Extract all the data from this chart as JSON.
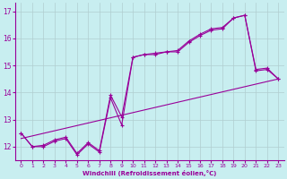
{
  "xlabel": "Windchill (Refroidissement éolien,°C)",
  "bg_color": "#c8eef0",
  "line_color": "#990099",
  "grid_color": "#b0cdd0",
  "xlim": [
    -0.5,
    23.5
  ],
  "ylim": [
    11.5,
    17.3
  ],
  "yticks": [
    12,
    13,
    14,
    15,
    16,
    17
  ],
  "xticks": [
    0,
    1,
    2,
    3,
    4,
    5,
    6,
    7,
    8,
    9,
    10,
    11,
    12,
    13,
    14,
    15,
    16,
    17,
    18,
    19,
    20,
    21,
    22,
    23
  ],
  "series1_x": [
    0,
    1,
    2,
    3,
    4,
    5,
    6,
    7,
    8,
    9,
    10,
    11,
    12,
    13,
    14,
    15,
    16,
    17,
    18,
    19,
    20,
    21,
    22,
    23
  ],
  "series1_y": [
    12.5,
    12.0,
    12.0,
    12.2,
    12.3,
    11.7,
    12.1,
    11.8,
    13.8,
    12.8,
    15.3,
    15.4,
    15.4,
    15.5,
    15.5,
    15.85,
    16.1,
    16.3,
    16.35,
    16.75,
    16.85,
    14.8,
    14.85,
    14.5
  ],
  "series2_x": [
    0,
    1,
    2,
    3,
    4,
    5,
    6,
    7,
    8,
    9,
    10,
    11,
    12,
    13,
    14,
    15,
    16,
    17,
    18,
    19,
    20,
    21,
    22,
    23
  ],
  "series2_y": [
    12.5,
    12.0,
    12.05,
    12.25,
    12.35,
    11.75,
    12.15,
    11.85,
    13.9,
    13.1,
    15.3,
    15.4,
    15.45,
    15.5,
    15.55,
    15.9,
    16.15,
    16.35,
    16.4,
    16.75,
    16.85,
    14.85,
    14.9,
    14.5
  ],
  "trend_x": [
    0,
    23
  ],
  "trend_y": [
    12.3,
    14.5
  ]
}
